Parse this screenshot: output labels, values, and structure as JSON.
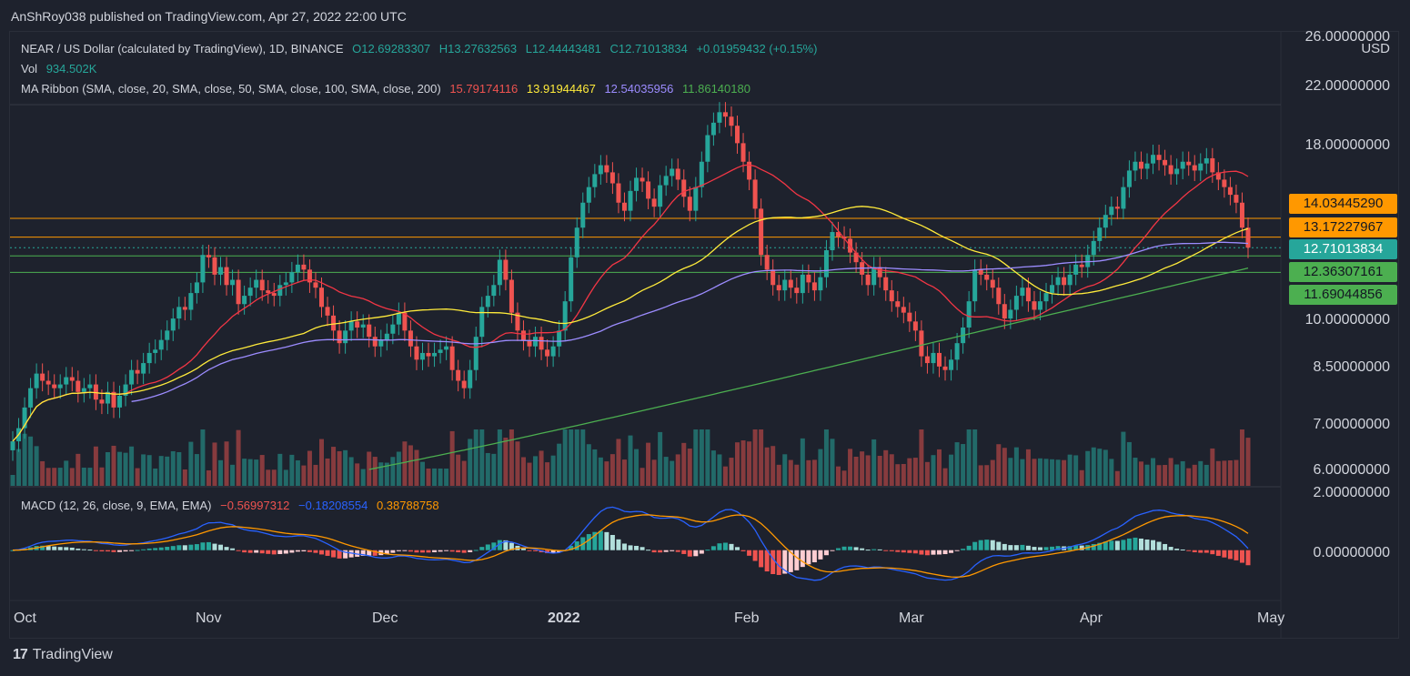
{
  "publisher": "AnShRoy038 published on TradingView.com, Apr 27, 2022 22:00 UTC",
  "legend": {
    "symbol": "NEAR / US Dollar (calculated by TradingView), 1D, BINANCE",
    "o": "O12.69283307",
    "h": "H13.27632563",
    "l": "L12.44443481",
    "c": "C12.71013834",
    "change": "+0.01959432 (+0.15%)",
    "vol_label": "Vol",
    "vol_value": "934.502K",
    "ma_label": "MA Ribbon (SMA, close, 20, SMA, close, 50, SMA, close, 100, SMA, close, 200)",
    "ma20": "15.79174116",
    "ma50": "13.91944467",
    "ma100": "12.54035956",
    "ma200": "11.86140180",
    "macd_label": "MACD (12, 26, close, 9, EMA, EMA)",
    "macd_hist": "−0.56997312",
    "macd_line": "−0.18208554",
    "macd_signal": "0.38788758"
  },
  "currency": "USD",
  "price_axis": [
    "26.00000000",
    "22.00000000",
    "18.00000000",
    "10.00000000",
    "8.50000000",
    "7.00000000",
    "6.00000000"
  ],
  "macd_axis": [
    "2.00000000",
    "0.00000000"
  ],
  "price_tags": [
    {
      "label": "14.03445290",
      "color": "#ff9800",
      "text_color": "#131722"
    },
    {
      "label": "13.17227967",
      "color": "#ff9800",
      "text_color": "#131722"
    },
    {
      "label": "12.71013834",
      "color": "#26a69a",
      "text_color": "#ffffff"
    },
    {
      "label": "12.36307161",
      "color": "#4caf50",
      "text_color": "#131722"
    },
    {
      "label": "11.69044856",
      "color": "#4caf50",
      "text_color": "#131722"
    }
  ],
  "time_axis": [
    "Oct",
    "Nov",
    "Dec",
    "2022",
    "Jan",
    "Feb",
    "Mar",
    "Apr",
    "May"
  ],
  "logo": "TradingView",
  "chart_data": {
    "type": "line",
    "note_series": "approximate daily closes NEAR/USD Sep 28 2021 - Apr 27 2022",
    "x_start": "2021-09-28",
    "closes": [
      6.6,
      6.9,
      7.4,
      7.9,
      8.3,
      8.1,
      8.0,
      7.9,
      8.0,
      8.2,
      8.1,
      7.8,
      7.9,
      8.0,
      7.6,
      7.5,
      7.8,
      7.4,
      7.7,
      8.0,
      8.4,
      8.3,
      8.6,
      8.9,
      9.0,
      9.3,
      9.6,
      10.0,
      10.4,
      10.3,
      10.9,
      11.3,
      12.4,
      12.3,
      11.6,
      11.9,
      11.2,
      11.4,
      10.5,
      10.8,
      11.1,
      11.4,
      11.0,
      10.9,
      10.8,
      11.2,
      11.3,
      11.7,
      12.0,
      11.8,
      11.3,
      11.1,
      10.4,
      10.1,
      9.6,
      9.2,
      9.6,
      9.9,
      9.7,
      9.8,
      9.4,
      9.1,
      9.3,
      9.5,
      9.8,
      10.2,
      9.6,
      9.1,
      8.7,
      8.9,
      8.8,
      8.9,
      9.0,
      9.1,
      8.4,
      8.1,
      7.9,
      8.4,
      9.4,
      10.4,
      10.8,
      11.2,
      12.2,
      11.4,
      10.2,
      9.6,
      9.3,
      9.1,
      9.4,
      9.0,
      8.8,
      9.1,
      9.6,
      10.6,
      12.3,
      13.6,
      14.8,
      15.6,
      16.3,
      16.8,
      16.4,
      15.8,
      14.8,
      14.4,
      15.4,
      16.1,
      15.9,
      15.0,
      14.6,
      15.7,
      16.2,
      16.6,
      16.0,
      15.1,
      14.4,
      15.6,
      17.0,
      18.6,
      19.4,
      20.1,
      19.8,
      19.2,
      18.1,
      17.0,
      16.0,
      14.5,
      12.4,
      11.8,
      11.2,
      11.0,
      11.4,
      11.1,
      10.9,
      11.6,
      11.3,
      11.0,
      11.5,
      12.6,
      13.4,
      13.2,
      13.1,
      12.5,
      12.1,
      11.6,
      11.2,
      11.9,
      11.5,
      11.0,
      10.6,
      10.4,
      10.2,
      9.9,
      9.6,
      8.8,
      8.6,
      8.9,
      8.5,
      8.4,
      8.7,
      9.2,
      9.7,
      10.6,
      11.8,
      11.6,
      11.4,
      11.1,
      10.5,
      10.0,
      10.3,
      10.8,
      11.1,
      10.6,
      10.3,
      10.6,
      10.9,
      11.2,
      11.5,
      11.2,
      11.6,
      12.0,
      11.9,
      12.4,
      13.0,
      13.6,
      14.2,
      14.6,
      14.5,
      15.6,
      16.5,
      17.0,
      16.6,
      16.9,
      17.4,
      17.1,
      16.8,
      16.3,
      16.6,
      17.0,
      16.8,
      16.5,
      16.9,
      17.2,
      16.4,
      16.0,
      15.6,
      15.2,
      14.8,
      13.6,
      12.71
    ],
    "ma_ribbon": [
      {
        "name": "SMA 20",
        "color": "#f23645",
        "last": 15.79174116
      },
      {
        "name": "SMA 50",
        "color": "#ffeb3b",
        "last": 13.91944467
      },
      {
        "name": "SMA 100",
        "color": "#9c8cff",
        "last": 12.54035956
      },
      {
        "name": "SMA 200",
        "color": "#4caf50",
        "last": 11.8614018
      }
    ],
    "horizontal_lines": [
      14.0344529,
      13.17227967,
      12.36307161,
      11.69044856
    ],
    "ylabel": "USD",
    "ylim": [
      6.0,
      26.0
    ],
    "macd_ylim": [
      -1.3,
      2.2
    ],
    "grid": false
  }
}
